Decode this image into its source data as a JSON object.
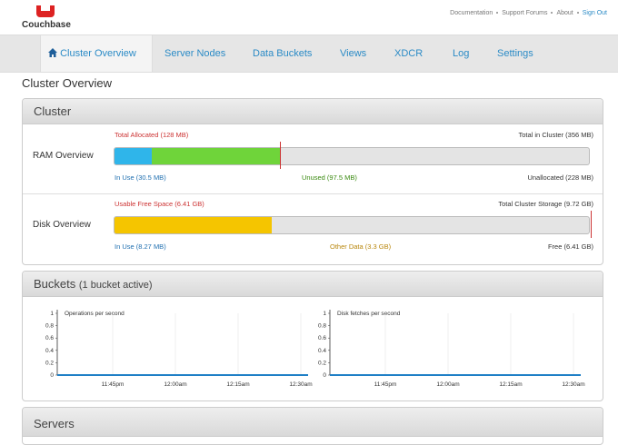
{
  "header": {
    "logo": "Couchbase",
    "links": [
      "Documentation",
      "Support Forums",
      "About",
      "Sign Out"
    ]
  },
  "nav": {
    "tabs": [
      "Cluster Overview",
      "Server Nodes",
      "Data Buckets",
      "Views",
      "XDCR",
      "Log",
      "Settings"
    ]
  },
  "page_title": "Cluster Overview",
  "cluster": {
    "title": "Cluster",
    "ram": {
      "label": "RAM Overview",
      "total_allocated": "Total Allocated (128 MB)",
      "total_in_cluster": "Total in Cluster (356 MB)",
      "in_use": "In Use (30.5 MB)",
      "unused": "Unused (97.5 MB)",
      "unallocated": "Unallocated (228 MB)"
    },
    "disk": {
      "label": "Disk Overview",
      "usable_free": "Usable Free Space (6.41 GB)",
      "total_storage": "Total Cluster Storage (9.72 GB)",
      "in_use": "In Use (8.27 MB)",
      "other_data": "Other Data (3.3 GB)",
      "free": "Free (6.41 GB)"
    }
  },
  "buckets": {
    "title": "Buckets",
    "subtitle": "(1 bucket active)",
    "charts": [
      {
        "title": "Operations per second",
        "ylim": [
          0,
          1
        ],
        "yticks": [
          0,
          0.2,
          0.4,
          0.6,
          0.8,
          1
        ],
        "xticks": [
          "11:45pm",
          "12:00am",
          "12:15am",
          "12:30am"
        ]
      },
      {
        "title": "Disk fetches per second",
        "ylim": [
          0,
          1
        ],
        "yticks": [
          0,
          0.2,
          0.4,
          0.6,
          0.8,
          1
        ],
        "xticks": [
          "11:45pm",
          "12:00am",
          "12:15am",
          "12:30am"
        ]
      }
    ]
  },
  "servers": {
    "title": "Servers"
  }
}
